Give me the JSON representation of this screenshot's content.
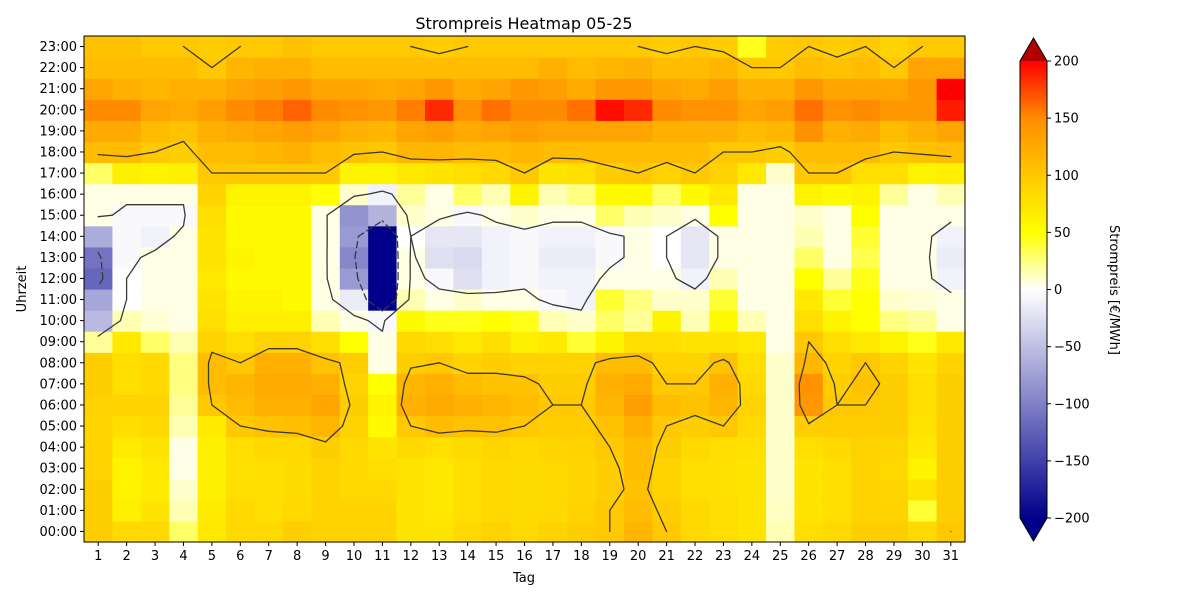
{
  "chart_data": {
    "type": "heatmap",
    "title": "Strompreis Heatmap 05-25",
    "xlabel": "Tag",
    "ylabel": "Uhrzeit",
    "colorbar_label": "Strompreis [€/MWh]",
    "x": [
      "1",
      "2",
      "3",
      "4",
      "5",
      "6",
      "7",
      "8",
      "9",
      "10",
      "11",
      "12",
      "13",
      "14",
      "15",
      "16",
      "17",
      "18",
      "19",
      "20",
      "21",
      "22",
      "23",
      "24",
      "25",
      "26",
      "27",
      "28",
      "29",
      "30",
      "31"
    ],
    "y": [
      "00:00",
      "01:00",
      "02:00",
      "03:00",
      "04:00",
      "05:00",
      "06:00",
      "07:00",
      "08:00",
      "09:00",
      "10:00",
      "11:00",
      "12:00",
      "13:00",
      "14:00",
      "15:00",
      "16:00",
      "17:00",
      "18:00",
      "19:00",
      "20:00",
      "21:00",
      "22:00",
      "23:00"
    ],
    "vmin": -200,
    "vmax": 200,
    "colorbar_ticks": [
      -200,
      -150,
      -100,
      -50,
      0,
      50,
      100,
      150,
      200
    ],
    "colormap": [
      {
        "value": -200,
        "color": "#00008b"
      },
      {
        "value": -100,
        "color": "#8080c8"
      },
      {
        "value": 0,
        "color": "#ffffff"
      },
      {
        "value": 50,
        "color": "#ffff00"
      },
      {
        "value": 100,
        "color": "#ffc800"
      },
      {
        "value": 150,
        "color": "#ff8c00"
      },
      {
        "value": 200,
        "color": "#ff0000"
      }
    ],
    "extend_colors": {
      "under": "#00008b",
      "over": "#b00000"
    },
    "contour_levels": [
      -100,
      0,
      100,
      200
    ],
    "values_by_day": [
      [
        95,
        95,
        95,
        92,
        90,
        88,
        92,
        95,
        95,
        20,
        -55,
        -70,
        -120,
        -110,
        -65,
        5,
        5,
        30,
        110,
        125,
        150,
        130,
        110,
        105
      ],
      [
        85,
        65,
        60,
        60,
        68,
        80,
        90,
        80,
        80,
        70,
        15,
        0,
        0,
        -5,
        -5,
        -5,
        5,
        65,
        110,
        125,
        150,
        120,
        110,
        105
      ],
      [
        85,
        75,
        68,
        70,
        75,
        85,
        90,
        85,
        85,
        30,
        8,
        5,
        5,
        5,
        -10,
        -5,
        5,
        60,
        100,
        110,
        130,
        115,
        110,
        100
      ],
      [
        30,
        15,
        10,
        5,
        5,
        15,
        20,
        25,
        25,
        15,
        5,
        5,
        5,
        5,
        5,
        -5,
        5,
        65,
        95,
        105,
        125,
        120,
        110,
        100
      ],
      [
        70,
        68,
        65,
        65,
        65,
        68,
        100,
        110,
        110,
        90,
        80,
        75,
        70,
        75,
        75,
        80,
        90,
        100,
        110,
        120,
        135,
        120,
        100,
        95
      ],
      [
        85,
        85,
        80,
        78,
        80,
        100,
        110,
        115,
        100,
        80,
        65,
        60,
        55,
        60,
        55,
        55,
        60,
        100,
        110,
        125,
        150,
        130,
        115,
        100
      ],
      [
        85,
        80,
        80,
        80,
        85,
        105,
        120,
        125,
        120,
        90,
        65,
        60,
        55,
        55,
        55,
        55,
        60,
        100,
        115,
        130,
        155,
        135,
        120,
        100
      ],
      [
        95,
        85,
        82,
        82,
        85,
        108,
        120,
        125,
        120,
        90,
        65,
        55,
        55,
        55,
        55,
        55,
        60,
        100,
        120,
        135,
        165,
        140,
        120,
        105
      ],
      [
        90,
        90,
        90,
        90,
        95,
        115,
        130,
        120,
        105,
        80,
        15,
        5,
        5,
        5,
        5,
        5,
        50,
        100,
        110,
        130,
        150,
        130,
        110,
        100
      ],
      [
        90,
        90,
        85,
        85,
        85,
        90,
        95,
        90,
        95,
        50,
        5,
        -15,
        -80,
        -95,
        -80,
        -85,
        10,
        60,
        105,
        120,
        145,
        130,
        110,
        100
      ],
      [
        90,
        90,
        85,
        80,
        75,
        55,
        60,
        50,
        5,
        5,
        -5,
        -210,
        -230,
        -230,
        -210,
        -60,
        -10,
        60,
        100,
        115,
        140,
        125,
        110,
        100
      ],
      [
        75,
        75,
        75,
        75,
        85,
        100,
        120,
        115,
        95,
        85,
        55,
        15,
        5,
        5,
        0,
        10,
        20,
        70,
        115,
        130,
        155,
        130,
        110,
        100
      ],
      [
        75,
        72,
        72,
        72,
        80,
        110,
        125,
        120,
        100,
        80,
        45,
        5,
        -5,
        -25,
        -20,
        5,
        5,
        75,
        115,
        135,
        185,
        140,
        110,
        95
      ],
      [
        85,
        80,
        80,
        80,
        82,
        105,
        120,
        110,
        90,
        70,
        45,
        10,
        -25,
        -30,
        -20,
        -5,
        30,
        80,
        110,
        125,
        145,
        125,
        110,
        100
      ],
      [
        90,
        85,
        85,
        85,
        88,
        105,
        115,
        105,
        95,
        80,
        50,
        5,
        -10,
        -10,
        -10,
        5,
        15,
        85,
        110,
        130,
        160,
        130,
        110,
        100
      ],
      [
        85,
        82,
        82,
        82,
        85,
        100,
        110,
        105,
        90,
        65,
        45,
        5,
        -5,
        -5,
        -5,
        10,
        60,
        100,
        115,
        135,
        150,
        140,
        110,
        100
      ],
      [
        90,
        85,
        85,
        85,
        88,
        95,
        100,
        95,
        90,
        70,
        15,
        -5,
        -10,
        -15,
        -10,
        5,
        15,
        75,
        110,
        130,
        150,
        135,
        120,
        100
      ],
      [
        95,
        90,
        88,
        88,
        90,
        95,
        100,
        95,
        90,
        40,
        10,
        -10,
        -10,
        -15,
        -10,
        5,
        25,
        80,
        110,
        130,
        160,
        125,
        110,
        100
      ],
      [
        100,
        100,
        95,
        95,
        100,
        105,
        115,
        120,
        110,
        60,
        30,
        40,
        5,
        -5,
        -5,
        30,
        55,
        95,
        110,
        130,
        195,
        140,
        115,
        100
      ],
      [
        115,
        110,
        105,
        110,
        110,
        120,
        135,
        125,
        110,
        80,
        20,
        25,
        5,
        5,
        5,
        15,
        55,
        100,
        110,
        130,
        185,
        140,
        120,
        100
      ],
      [
        100,
        95,
        90,
        90,
        95,
        100,
        110,
        100,
        90,
        80,
        60,
        10,
        5,
        0,
        0,
        10,
        30,
        90,
        110,
        120,
        150,
        130,
        110,
        95
      ],
      [
        85,
        85,
        80,
        80,
        85,
        95,
        105,
        100,
        90,
        75,
        15,
        10,
        -10,
        -20,
        -20,
        5,
        55,
        100,
        110,
        120,
        145,
        125,
        110,
        100
      ],
      [
        80,
        80,
        78,
        78,
        80,
        100,
        115,
        120,
        105,
        75,
        55,
        40,
        15,
        5,
        5,
        50,
        70,
        90,
        100,
        120,
        145,
        135,
        115,
        95
      ],
      [
        75,
        75,
        75,
        75,
        78,
        85,
        90,
        85,
        80,
        70,
        15,
        5,
        5,
        5,
        5,
        5,
        5,
        70,
        100,
        110,
        130,
        120,
        100,
        45
      ],
      [
        15,
        12,
        10,
        10,
        10,
        10,
        10,
        10,
        10,
        5,
        5,
        5,
        5,
        5,
        5,
        5,
        5,
        10,
        95,
        115,
        135,
        120,
        100,
        95
      ],
      [
        80,
        75,
        75,
        75,
        80,
        95,
        140,
        145,
        115,
        100,
        80,
        70,
        50,
        30,
        15,
        10,
        60,
        100,
        110,
        145,
        160,
        140,
        110,
        100
      ],
      [
        85,
        80,
        80,
        80,
        85,
        95,
        100,
        95,
        90,
        80,
        60,
        40,
        20,
        5,
        5,
        5,
        55,
        100,
        110,
        120,
        145,
        130,
        105,
        95
      ],
      [
        95,
        90,
        90,
        90,
        90,
        95,
        100,
        105,
        100,
        70,
        50,
        50,
        45,
        35,
        40,
        50,
        60,
        80,
        110,
        125,
        150,
        130,
        110,
        100
      ],
      [
        95,
        90,
        88,
        85,
        88,
        95,
        95,
        95,
        90,
        60,
        25,
        10,
        5,
        5,
        5,
        5,
        20,
        80,
        100,
        110,
        140,
        130,
        100,
        90
      ],
      [
        85,
        40,
        75,
        60,
        70,
        75,
        80,
        80,
        75,
        45,
        20,
        8,
        5,
        5,
        5,
        5,
        5,
        60,
        105,
        120,
        140,
        140,
        130,
        100
      ],
      [
        100,
        95,
        95,
        95,
        95,
        95,
        95,
        95,
        90,
        70,
        5,
        5,
        -10,
        -15,
        -10,
        5,
        15,
        65,
        110,
        130,
        190,
        200,
        130,
        100
      ]
    ]
  }
}
